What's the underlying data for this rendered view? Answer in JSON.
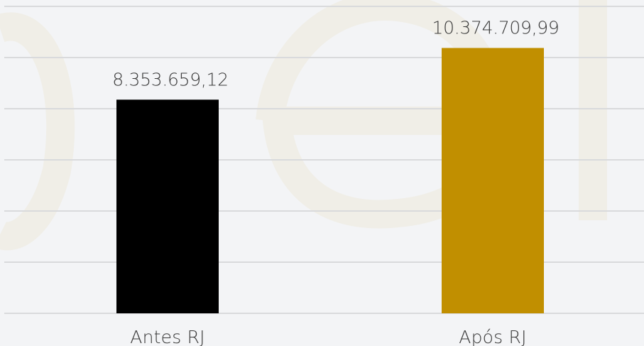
{
  "chart_data": {
    "type": "bar",
    "categories": [
      "Antes RJ",
      "Após RJ"
    ],
    "values": [
      8353659.12,
      10374709.99
    ],
    "data_labels": [
      "8.353.659,12",
      "10.374.709,99"
    ],
    "colors": [
      "#000000",
      "#c18f00"
    ],
    "ylim": [
      0,
      12000000
    ],
    "grid": true,
    "legend": "none",
    "title": "",
    "xlabel": "",
    "ylabel": ""
  },
  "colors": {
    "background": "#f3f4f6",
    "gridline": "#d9dadc",
    "watermark": "#efede6"
  }
}
